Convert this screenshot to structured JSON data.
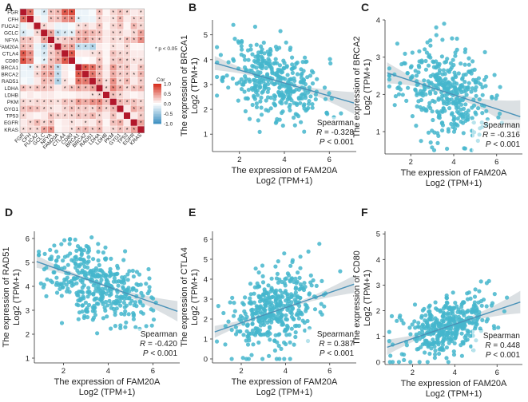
{
  "panel_labels": [
    "A",
    "B",
    "C",
    "D",
    "E",
    "F"
  ],
  "chart_data": [
    {
      "panel": "A",
      "type": "heatmap",
      "genes": [
        "FGR",
        "CFH",
        "FUCA2",
        "GCLC",
        "NFYA",
        "FAM20A",
        "CTLA4",
        "CD80",
        "BRCA1",
        "BRCA2",
        "RAD51",
        "LDHA",
        "LDHB",
        "PKM",
        "GYG1",
        "TP53",
        "EGFR",
        "KRAS"
      ],
      "legend_title": "Cor",
      "legend_ticks": [
        "1.0",
        "0.5",
        "0.0",
        "-0.5",
        "-1.0"
      ],
      "significance_note": "* p < 0.05",
      "colors": {
        "high": "#d7301f",
        "mid": "#ffffff",
        "low": "#4393c3",
        "diag": "#b2182b"
      },
      "matrix": [
        [
          1,
          0.7,
          -0.1,
          -0.2,
          0.3,
          0.35,
          0.8,
          0.85,
          -0.1,
          -0.1,
          -0.05,
          0.3,
          0.05,
          0.2,
          0.3,
          0.2,
          0.1,
          0.15
        ],
        [
          0.7,
          1,
          0.1,
          -0.1,
          0.3,
          0.3,
          0.55,
          0.6,
          -0.15,
          -0.1,
          -0.1,
          0.2,
          0.1,
          0.15,
          0.35,
          0.1,
          0.2,
          0.2
        ],
        [
          -0.1,
          0.1,
          1,
          0.2,
          0.1,
          -0.1,
          -0.1,
          -0.05,
          0.15,
          0.2,
          0.1,
          0.3,
          0.05,
          0.2,
          0.3,
          0.05,
          0.35,
          0.2
        ],
        [
          -0.2,
          -0.1,
          0.2,
          1,
          0.45,
          -0.3,
          -0.2,
          -0.15,
          0.35,
          0.4,
          0.35,
          0.3,
          0.1,
          0.2,
          0.2,
          0.1,
          0.2,
          0.45
        ],
        [
          0.3,
          0.3,
          0.1,
          0.45,
          1,
          0.2,
          0.25,
          0.3,
          0.4,
          0.45,
          0.3,
          0.25,
          0.1,
          0.2,
          0.15,
          0.3,
          0.3,
          0.55
        ],
        [
          0.35,
          0.3,
          -0.1,
          -0.3,
          0.2,
          1,
          0.4,
          0.45,
          -0.33,
          -0.32,
          -0.42,
          0.1,
          0.05,
          0.15,
          0.1,
          0.2,
          0.05,
          0.05
        ],
        [
          0.8,
          0.55,
          -0.1,
          -0.2,
          0.25,
          0.4,
          1,
          0.8,
          0.1,
          0.1,
          0.15,
          0.2,
          0.05,
          0.3,
          0.2,
          0.2,
          0.1,
          0.1
        ],
        [
          0.85,
          0.6,
          -0.05,
          -0.15,
          0.3,
          0.45,
          0.8,
          1,
          -0.05,
          0.0,
          0.05,
          0.3,
          0.05,
          0.25,
          0.3,
          0.2,
          0.15,
          0.15
        ],
        [
          -0.1,
          -0.15,
          0.15,
          0.35,
          0.4,
          -0.33,
          0.1,
          -0.05,
          1,
          0.8,
          0.7,
          0.4,
          0.1,
          0.5,
          0.25,
          0.3,
          0.1,
          0.3
        ],
        [
          -0.1,
          -0.1,
          0.2,
          0.4,
          0.45,
          -0.32,
          0.1,
          0.0,
          0.8,
          1,
          0.65,
          0.35,
          0.1,
          0.4,
          0.25,
          0.25,
          0.15,
          0.35
        ],
        [
          -0.05,
          -0.1,
          0.1,
          0.35,
          0.3,
          -0.42,
          0.15,
          0.05,
          0.7,
          0.65,
          1,
          0.45,
          0.15,
          0.55,
          0.2,
          0.35,
          0.1,
          0.25
        ],
        [
          0.3,
          0.2,
          0.3,
          0.3,
          0.25,
          0.1,
          0.2,
          0.3,
          0.4,
          0.35,
          0.45,
          1,
          0.2,
          0.6,
          0.4,
          0.2,
          0.3,
          0.35
        ],
        [
          0.05,
          0.1,
          0.05,
          0.1,
          0.1,
          0.05,
          0.05,
          0.05,
          0.1,
          0.1,
          0.15,
          0.2,
          1,
          0.3,
          0.2,
          0.1,
          0.05,
          0.1
        ],
        [
          0.2,
          0.15,
          0.2,
          0.2,
          0.2,
          0.15,
          0.3,
          0.25,
          0.5,
          0.4,
          0.55,
          0.6,
          0.3,
          1,
          0.35,
          0.3,
          0.3,
          0.2
        ],
        [
          0.3,
          0.35,
          0.3,
          0.2,
          0.15,
          0.1,
          0.2,
          0.3,
          0.25,
          0.25,
          0.2,
          0.4,
          0.2,
          0.35,
          1,
          0.1,
          0.4,
          0.3
        ],
        [
          0.2,
          0.1,
          0.05,
          0.1,
          0.3,
          0.2,
          0.2,
          0.2,
          0.3,
          0.25,
          0.35,
          0.2,
          0.1,
          0.3,
          0.1,
          1,
          0.1,
          0.25
        ],
        [
          0.1,
          0.2,
          0.35,
          0.2,
          0.3,
          0.05,
          0.1,
          0.15,
          0.1,
          0.15,
          0.1,
          0.3,
          0.05,
          0.3,
          0.4,
          0.1,
          1,
          0.45
        ],
        [
          0.15,
          0.2,
          0.2,
          0.45,
          0.55,
          0.05,
          0.1,
          0.15,
          0.3,
          0.35,
          0.25,
          0.35,
          0.1,
          0.2,
          0.3,
          0.25,
          0.45,
          1
        ]
      ]
    },
    {
      "panel": "B",
      "type": "scatter",
      "xlabel_line1": "The expression of FAM20A",
      "xlabel_line2": "Log2 (TPM+1)",
      "ylabel_line1": "The expression of BRCA1",
      "ylabel_line2": "Log2 (TPM+1)",
      "xlim": [
        0.8,
        7.2
      ],
      "ylim": [
        0.3,
        5.6
      ],
      "xticks": [
        2,
        4,
        6
      ],
      "yticks": [
        1,
        2,
        3,
        4,
        5
      ],
      "method": "Spearman",
      "r_text": "-0.328",
      "p_text": "< 0.001",
      "fit": {
        "slope": -0.26,
        "intercept": 4.1
      },
      "x_mean": 3.6,
      "x_sd": 1.05,
      "y_sd": 0.75,
      "n_points": 380,
      "seed": 11,
      "x_min": 1.0,
      "x_max": 7.0,
      "y_min": 0.4,
      "y_max": 5.4
    },
    {
      "panel": "C",
      "type": "scatter",
      "xlabel_line1": "The expression of FAM20A",
      "xlabel_line2": "Log2 (TPM+1)",
      "ylabel_line1": "The expression of BRCA2",
      "ylabel_line2": "Log2 (TPM+1)",
      "xlim": [
        0.8,
        7.2
      ],
      "ylim": [
        0.4,
        4.0
      ],
      "xticks": [
        2,
        4,
        6
      ],
      "yticks": [
        1,
        2,
        3,
        4
      ],
      "method": "Spearman",
      "r_text": "-0.316",
      "p_text": "< 0.001",
      "fit": {
        "slope": -0.19,
        "intercept": 2.75
      },
      "x_mean": 3.6,
      "x_sd": 1.05,
      "y_sd": 0.6,
      "n_points": 380,
      "seed": 23,
      "x_min": 1.0,
      "x_max": 7.0,
      "y_min": 0.5,
      "y_max": 3.9
    },
    {
      "panel": "D",
      "type": "scatter",
      "xlabel_line1": "The expression of FAM20A",
      "xlabel_line2": "Log2 (TPM+1)",
      "ylabel_line1": "The expression of RAD51",
      "ylabel_line2": "Log2 (TPM+1)",
      "xlim": [
        0.7,
        7.2
      ],
      "ylim": [
        0.8,
        6.3
      ],
      "xticks": [
        2,
        4,
        6
      ],
      "yticks": [
        1,
        2,
        3,
        4,
        5,
        6
      ],
      "method": "Spearman",
      "r_text": "-0.420",
      "p_text": "< 0.001",
      "fit": {
        "slope": -0.33,
        "intercept": 5.3
      },
      "x_mean": 3.5,
      "x_sd": 1.1,
      "y_sd": 0.75,
      "n_points": 400,
      "seed": 37,
      "x_min": 0.9,
      "x_max": 7.0,
      "y_min": 1.0,
      "y_max": 6.1
    },
    {
      "panel": "E",
      "type": "scatter",
      "xlabel_line1": "The expression of FAM20A",
      "xlabel_line2": "Log2 (TPM+1)",
      "ylabel_line1": "The expression of CTLA4",
      "ylabel_line2": "Log2 (TPM+1)",
      "xlim": [
        0.7,
        7.2
      ],
      "ylim": [
        -0.2,
        6.4
      ],
      "xticks": [
        2,
        4,
        6
      ],
      "yticks": [
        0,
        1,
        2,
        3,
        4,
        5,
        6
      ],
      "method": "Spearman",
      "r_text": "0.387",
      "p_text": "< 0.001",
      "fit": {
        "slope": 0.38,
        "intercept": 1.05
      },
      "x_mean": 3.6,
      "x_sd": 1.05,
      "y_sd": 1.0,
      "n_points": 400,
      "seed": 53,
      "x_min": 0.9,
      "x_max": 7.0,
      "y_min": 0.0,
      "y_max": 6.2
    },
    {
      "panel": "F",
      "type": "scatter",
      "xlabel_line1": "The expression of FAM20A",
      "xlabel_line2": "Log2 (TPM+1)",
      "ylabel_line1": "The expression of CD80",
      "ylabel_line2": "Log2 (TPM+1)",
      "xlim": [
        0.7,
        7.2
      ],
      "ylim": [
        -0.1,
        5.1
      ],
      "xticks": [
        2,
        4,
        6
      ],
      "yticks": [
        0,
        1,
        2,
        3,
        4,
        5
      ],
      "method": "Spearman",
      "r_text": "0.448",
      "p_text": "< 0.001",
      "fit": {
        "slope": 0.28,
        "intercept": 0.35
      },
      "x_mean": 3.6,
      "x_sd": 1.05,
      "y_sd": 0.55,
      "n_points": 400,
      "seed": 71,
      "x_min": 0.9,
      "x_max": 7.0,
      "y_min": 0.0,
      "y_max": 4.9
    }
  ],
  "style": {
    "point_color": "#45b6cc",
    "line_color": "#4a92b8",
    "band_color": "#cfd6da"
  }
}
